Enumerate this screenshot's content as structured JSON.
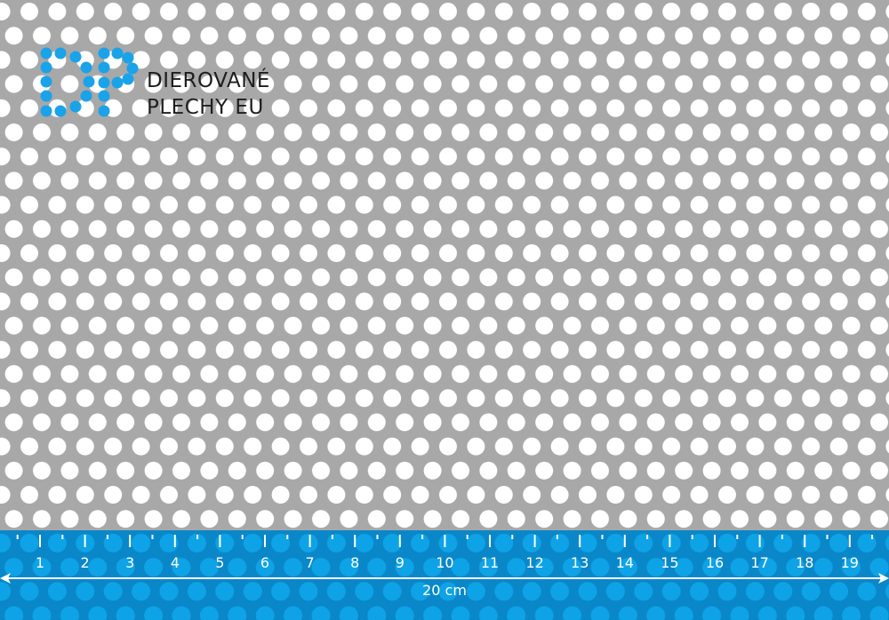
{
  "logo": {
    "mark": "DP",
    "line1": "DIEROVANÉ",
    "line2": "PLECHY EU",
    "color": "#1aa3e8"
  },
  "ruler": {
    "labels": [
      "1",
      "2",
      "3",
      "4",
      "5",
      "6",
      "7",
      "8",
      "9",
      "10",
      "11",
      "12",
      "13",
      "14",
      "15",
      "16",
      "17",
      "18",
      "19"
    ],
    "total_label": "20 cm",
    "band_color": "#0a87c8",
    "hole_color": "#0ea3e6"
  },
  "sheet": {
    "metal_color": "#a8a8a8",
    "hole_color": "#ffffff"
  }
}
